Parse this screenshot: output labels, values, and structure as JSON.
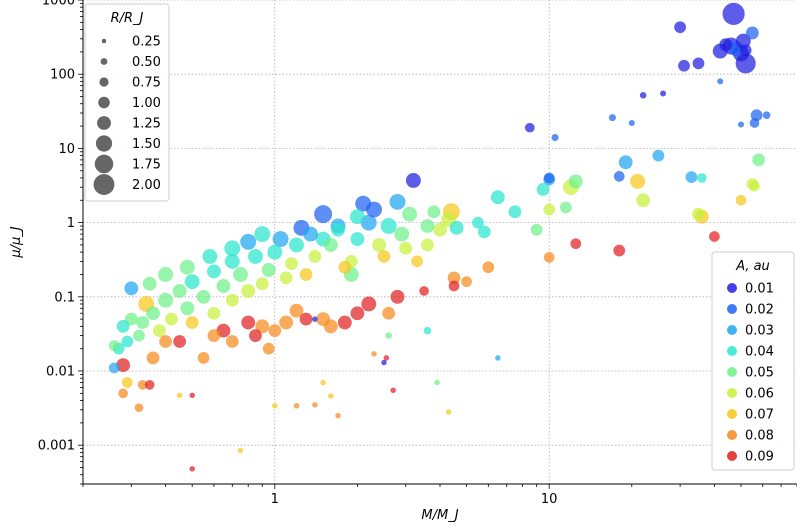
{
  "chart_data": {
    "type": "scatter",
    "title": "",
    "xlabel": "M/M_J",
    "ylabel": "μ/μ_J",
    "x_scale": "log",
    "y_scale": "log",
    "xlim": [
      0.2,
      80
    ],
    "ylim": [
      0.0003,
      1000
    ],
    "grid": true,
    "x_ticks": [
      {
        "value": 1,
        "label": "1"
      },
      {
        "value": 10,
        "label": "10"
      }
    ],
    "y_ticks": [
      {
        "value": 0.001,
        "label": "0.001"
      },
      {
        "value": 0.01,
        "label": "0.01"
      },
      {
        "value": 0.1,
        "label": "0.1"
      },
      {
        "value": 1,
        "label": "1"
      },
      {
        "value": 10,
        "label": "10"
      },
      {
        "value": 100,
        "label": "100"
      },
      {
        "value": 1000,
        "label": "1000"
      }
    ],
    "color_variable": "A, au",
    "size_variable": "R/R_J",
    "size_legend": {
      "title": "R/R_J",
      "placement": "top-left",
      "entries": [
        "0.25",
        "0.50",
        "0.75",
        "1.00",
        "1.25",
        "1.50",
        "1.75",
        "2.00"
      ],
      "values": [
        0.25,
        0.5,
        0.75,
        1.0,
        1.25,
        1.5,
        1.75,
        2.0
      ]
    },
    "color_legend": {
      "title": "A, au",
      "placement": "bottom-right",
      "entries": [
        "0.01",
        "0.02",
        "0.03",
        "0.04",
        "0.05",
        "0.06",
        "0.07",
        "0.08",
        "0.09"
      ],
      "values": [
        0.01,
        0.02,
        0.03,
        0.04,
        0.05,
        0.06,
        0.07,
        0.08,
        0.09
      ],
      "colors": [
        "#1f1fe0",
        "#1f62f2",
        "#1fa6f2",
        "#2ae6cf",
        "#6ef08a",
        "#c8f03c",
        "#f5c71a",
        "#f58a1f",
        "#e02020"
      ]
    },
    "points_columns": [
      "mass",
      "mu",
      "radius",
      "semi_major_axis"
    ],
    "points": [
      [
        47,
        650,
        1.9,
        0.01
      ],
      [
        46,
        240,
        1.4,
        0.01
      ],
      [
        50,
        190,
        1.3,
        0.01
      ],
      [
        52,
        140,
        1.7,
        0.01
      ],
      [
        48,
        220,
        1.2,
        0.02
      ],
      [
        42,
        205,
        1.2,
        0.01
      ],
      [
        44,
        250,
        1.0,
        0.01
      ],
      [
        51,
        280,
        1.2,
        0.01
      ],
      [
        55,
        360,
        1.0,
        0.02
      ],
      [
        30,
        430,
        0.9,
        0.01
      ],
      [
        31,
        130,
        0.9,
        0.01
      ],
      [
        35,
        140,
        0.9,
        0.01
      ],
      [
        52,
        210,
        0.9,
        0.01
      ],
      [
        57,
        28,
        0.9,
        0.02
      ],
      [
        56,
        22,
        0.7,
        0.02
      ],
      [
        62,
        28,
        0.5,
        0.02
      ],
      [
        42,
        80,
        0.35,
        0.02
      ],
      [
        50,
        21,
        0.35,
        0.02
      ],
      [
        26,
        55,
        0.35,
        0.01
      ],
      [
        22,
        52,
        0.4,
        0.01
      ],
      [
        20,
        22,
        0.35,
        0.02
      ],
      [
        17,
        26,
        0.45,
        0.02
      ],
      [
        8.5,
        19,
        0.7,
        0.01
      ],
      [
        10.5,
        14,
        0.45,
        0.02
      ],
      [
        18,
        4.2,
        0.8,
        0.02
      ],
      [
        19,
        6.5,
        1.1,
        0.03
      ],
      [
        25,
        8.0,
        0.9,
        0.03
      ],
      [
        33,
        4.1,
        0.9,
        0.03
      ],
      [
        36,
        4.0,
        0.7,
        0.04
      ],
      [
        12.5,
        3.6,
        1.1,
        0.05
      ],
      [
        12,
        3.0,
        1.3,
        0.06
      ],
      [
        10,
        3.8,
        0.9,
        0.03
      ],
      [
        9.5,
        2.8,
        1.0,
        0.04
      ],
      [
        10,
        4.0,
        0.8,
        0.02
      ],
      [
        3.2,
        3.7,
        1.2,
        0.01
      ],
      [
        21,
        3.6,
        1.2,
        0.07
      ],
      [
        22,
        2.0,
        1.1,
        0.06
      ],
      [
        35,
        1.3,
        1.0,
        0.06
      ],
      [
        36,
        1.2,
        1.1,
        0.07
      ],
      [
        55,
        3.3,
        0.9,
        0.06
      ],
      [
        58,
        7,
        1.0,
        0.05
      ],
      [
        56,
        3.1,
        0.8,
        0.06
      ],
      [
        50,
        2.0,
        0.8,
        0.07
      ],
      [
        40,
        0.65,
        0.8,
        0.09
      ],
      [
        18,
        0.42,
        0.9,
        0.09
      ],
      [
        12.5,
        0.52,
        0.8,
        0.09
      ],
      [
        10,
        0.34,
        0.8,
        0.08
      ],
      [
        11.5,
        1.6,
        0.9,
        0.05
      ],
      [
        10,
        1.5,
        0.9,
        0.06
      ],
      [
        9,
        0.8,
        0.9,
        0.05
      ],
      [
        7.5,
        1.4,
        1.0,
        0.04
      ],
      [
        6.5,
        2.2,
        1.1,
        0.04
      ],
      [
        5.5,
        1.0,
        0.9,
        0.04
      ],
      [
        6,
        0.25,
        0.9,
        0.08
      ],
      [
        5,
        0.16,
        0.8,
        0.08
      ],
      [
        4.5,
        0.14,
        0.8,
        0.09
      ],
      [
        3.5,
        0.12,
        0.7,
        0.09
      ],
      [
        4.5,
        0.18,
        1.0,
        0.08
      ],
      [
        4.4,
        1.4,
        1.4,
        0.07
      ],
      [
        4.3,
        1.1,
        1.2,
        0.06
      ],
      [
        4,
        0.8,
        1.1,
        0.06
      ],
      [
        3.8,
        1.4,
        1.0,
        0.05
      ],
      [
        3.6,
        0.5,
        1.0,
        0.06
      ],
      [
        3.3,
        0.3,
        0.9,
        0.07
      ],
      [
        3,
        0.45,
        1.0,
        0.06
      ],
      [
        2.8,
        1.9,
        1.3,
        0.03
      ],
      [
        2.6,
        0.9,
        1.3,
        0.04
      ],
      [
        2.5,
        0.35,
        1.0,
        0.07
      ],
      [
        2.4,
        0.5,
        1.1,
        0.06
      ],
      [
        2.2,
        1.0,
        1.3,
        0.03
      ],
      [
        2,
        1.2,
        1.2,
        0.04
      ],
      [
        2,
        0.6,
        1.1,
        0.04
      ],
      [
        1.9,
        0.3,
        1.0,
        0.06
      ],
      [
        1.8,
        0.25,
        1.0,
        0.07
      ],
      [
        1.7,
        0.8,
        1.1,
        0.04
      ],
      [
        1.6,
        0.5,
        1.1,
        0.05
      ],
      [
        1.5,
        1.3,
        1.5,
        0.02
      ],
      [
        1.5,
        0.6,
        1.2,
        0.04
      ],
      [
        1.4,
        0.35,
        1.0,
        0.06
      ],
      [
        1.3,
        0.2,
        1.0,
        0.07
      ],
      [
        1.25,
        0.85,
        1.3,
        0.02
      ],
      [
        1.2,
        0.5,
        1.2,
        0.04
      ],
      [
        1.15,
        0.28,
        1.0,
        0.06
      ],
      [
        1.1,
        0.18,
        1.0,
        0.06
      ],
      [
        1.05,
        0.6,
        1.3,
        0.03
      ],
      [
        1.0,
        0.4,
        1.2,
        0.04
      ],
      [
        0.95,
        0.23,
        1.1,
        0.05
      ],
      [
        0.9,
        0.15,
        1.0,
        0.06
      ],
      [
        0.85,
        0.35,
        1.2,
        0.04
      ],
      [
        0.8,
        0.12,
        1.1,
        0.06
      ],
      [
        0.8,
        0.55,
        1.3,
        0.03
      ],
      [
        0.75,
        0.2,
        1.2,
        0.05
      ],
      [
        0.7,
        0.09,
        1.0,
        0.06
      ],
      [
        0.7,
        0.3,
        1.2,
        0.04
      ],
      [
        0.65,
        0.14,
        1.1,
        0.05
      ],
      [
        0.6,
        0.06,
        1.0,
        0.06
      ],
      [
        0.6,
        0.22,
        1.1,
        0.04
      ],
      [
        0.55,
        0.1,
        1.1,
        0.05
      ],
      [
        0.5,
        0.045,
        1.0,
        0.07
      ],
      [
        0.5,
        0.16,
        1.2,
        0.04
      ],
      [
        0.48,
        0.07,
        1.1,
        0.05
      ],
      [
        0.45,
        0.12,
        1.1,
        0.05
      ],
      [
        0.42,
        0.05,
        1.0,
        0.06
      ],
      [
        0.4,
        0.09,
        1.2,
        0.05
      ],
      [
        0.38,
        0.035,
        1.0,
        0.06
      ],
      [
        0.36,
        0.06,
        1.1,
        0.05
      ],
      [
        0.34,
        0.08,
        1.3,
        0.07
      ],
      [
        0.33,
        0.045,
        1.0,
        0.05
      ],
      [
        0.32,
        0.03,
        0.9,
        0.05
      ],
      [
        0.3,
        0.05,
        1.0,
        0.05
      ],
      [
        0.29,
        0.025,
        0.9,
        0.04
      ],
      [
        0.28,
        0.04,
        1.0,
        0.04
      ],
      [
        0.27,
        0.02,
        0.9,
        0.04
      ],
      [
        0.26,
        0.022,
        0.8,
        0.05
      ],
      [
        0.26,
        0.011,
        0.8,
        0.03
      ],
      [
        0.3,
        0.13,
        1.1,
        0.03
      ],
      [
        0.28,
        0.012,
        1.1,
        0.09
      ],
      [
        0.29,
        0.007,
        0.8,
        0.07
      ],
      [
        0.28,
        0.005,
        0.7,
        0.08
      ],
      [
        0.33,
        0.0065,
        0.7,
        0.08
      ],
      [
        0.35,
        0.0065,
        0.7,
        0.09
      ],
      [
        0.32,
        0.0032,
        0.6,
        0.08
      ],
      [
        0.36,
        0.015,
        1.0,
        0.08
      ],
      [
        0.4,
        0.025,
        1.0,
        0.08
      ],
      [
        0.45,
        0.025,
        1.0,
        0.09
      ],
      [
        0.55,
        0.015,
        0.9,
        0.08
      ],
      [
        0.6,
        0.03,
        1.0,
        0.08
      ],
      [
        0.65,
        0.035,
        1.1,
        0.09
      ],
      [
        0.7,
        0.025,
        1.0,
        0.08
      ],
      [
        0.8,
        0.045,
        1.1,
        0.09
      ],
      [
        0.85,
        0.03,
        1.0,
        0.09
      ],
      [
        0.9,
        0.04,
        1.1,
        0.08
      ],
      [
        0.95,
        0.02,
        0.9,
        0.08
      ],
      [
        1.0,
        0.035,
        1.0,
        0.08
      ],
      [
        1.1,
        0.045,
        1.1,
        0.08
      ],
      [
        1.2,
        0.065,
        1.1,
        0.08
      ],
      [
        1.3,
        0.05,
        1.0,
        0.09
      ],
      [
        1.5,
        0.05,
        1.1,
        0.08
      ],
      [
        1.6,
        0.04,
        1.1,
        0.08
      ],
      [
        1.8,
        0.045,
        1.1,
        0.09
      ],
      [
        2,
        0.06,
        1.1,
        0.09
      ],
      [
        2.2,
        0.08,
        1.2,
        0.09
      ],
      [
        2.6,
        0.06,
        1.0,
        0.08
      ],
      [
        2.8,
        0.1,
        1.1,
        0.09
      ],
      [
        0.5,
        0.0047,
        0.3,
        0.09
      ],
      [
        0.45,
        0.0047,
        0.3,
        0.07
      ],
      [
        0.75,
        0.00085,
        0.3,
        0.07
      ],
      [
        0.5,
        0.00048,
        0.3,
        0.09
      ],
      [
        1.0,
        0.0034,
        0.3,
        0.07
      ],
      [
        1.2,
        0.0034,
        0.3,
        0.08
      ],
      [
        1.4,
        0.0035,
        0.3,
        0.08
      ],
      [
        1.5,
        0.007,
        0.3,
        0.07
      ],
      [
        1.6,
        0.0046,
        0.3,
        0.07
      ],
      [
        1.7,
        0.0025,
        0.3,
        0.08
      ],
      [
        2.3,
        0.017,
        0.3,
        0.08
      ],
      [
        2.6,
        0.03,
        0.4,
        0.05
      ],
      [
        2.55,
        0.015,
        0.3,
        0.09
      ],
      [
        2.5,
        0.013,
        0.3,
        0.01
      ],
      [
        2.7,
        0.0055,
        0.3,
        0.09
      ],
      [
        3.6,
        0.035,
        0.5,
        0.04
      ],
      [
        3.9,
        0.007,
        0.3,
        0.05
      ],
      [
        4.3,
        0.0028,
        0.3,
        0.07
      ],
      [
        6.5,
        0.015,
        0.3,
        0.03
      ],
      [
        1.4,
        0.05,
        0.3,
        0.01
      ],
      [
        1.9,
        0.2,
        1.2,
        0.05
      ],
      [
        2.1,
        1.8,
        1.3,
        0.02
      ],
      [
        2.3,
        1.5,
        1.3,
        0.02
      ],
      [
        1.7,
        0.9,
        1.2,
        0.03
      ],
      [
        1.35,
        0.7,
        1.2,
        0.03
      ],
      [
        0.9,
        0.7,
        1.3,
        0.04
      ],
      [
        0.7,
        0.45,
        1.3,
        0.04
      ],
      [
        0.58,
        0.35,
        1.2,
        0.04
      ],
      [
        0.48,
        0.25,
        1.2,
        0.05
      ],
      [
        0.4,
        0.2,
        1.2,
        0.05
      ],
      [
        0.35,
        0.15,
        1.1,
        0.05
      ],
      [
        3.1,
        1.3,
        1.2,
        0.05
      ],
      [
        3.6,
        0.9,
        1.1,
        0.05
      ],
      [
        2.9,
        0.7,
        1.2,
        0.05
      ],
      [
        4.6,
        0.85,
        1.1,
        0.04
      ],
      [
        5.8,
        0.75,
        1.0,
        0.04
      ]
    ]
  }
}
